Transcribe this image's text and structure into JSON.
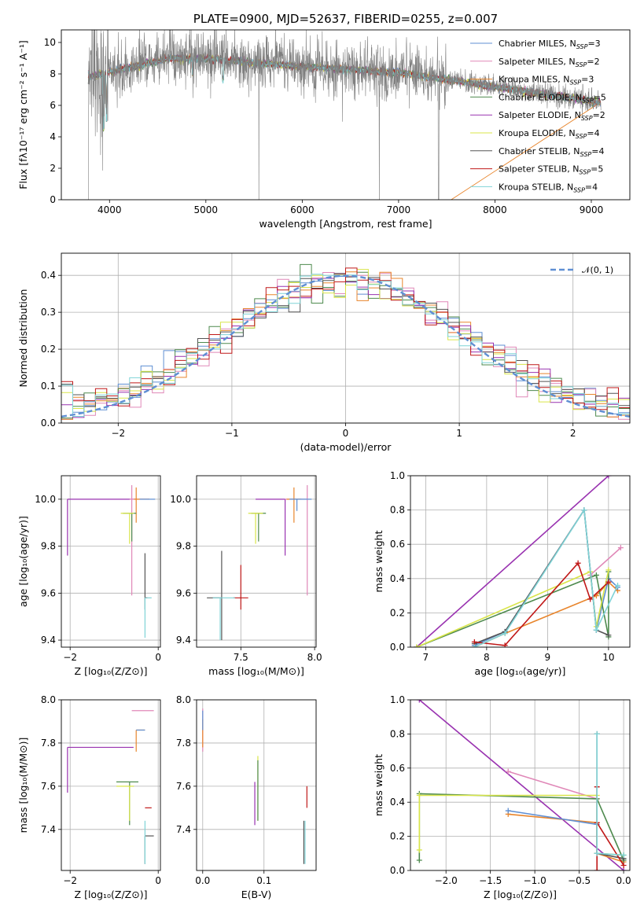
{
  "chart_data": [
    {
      "type": "line",
      "title": "PLATE=0900, MJD=52637, FIBERID=0255, z=0.007",
      "xlabel": "wavelength [Angstrom, rest frame]",
      "ylabel": "Flux [fλ10⁻¹⁷ erg cm⁻² s⁻¹ A⁻¹]",
      "xlim": [
        3500,
        9400
      ],
      "ylim": [
        0,
        10.8
      ],
      "xticks": [
        4000,
        5000,
        6000,
        7000,
        8000,
        9000
      ],
      "yticks": [
        0,
        2,
        4,
        6,
        8,
        10
      ],
      "grid": false,
      "legend_position": "top-right",
      "data_series": {
        "name": "",
        "color": "#7f7f7f",
        "x_range": [
          3780,
          9100
        ]
      },
      "series": [
        {
          "name": "Chabrier MILES, N_SSP=3",
          "label_main": "Chabrier MILES, N",
          "label_sub": "SSP",
          "label_tail": "=3",
          "color": "#5f8fd3"
        },
        {
          "name": "Salpeter MILES, N_SSP=2",
          "label_main": "Salpeter MILES, N",
          "label_sub": "SSP",
          "label_tail": "=2",
          "color": "#e088b8"
        },
        {
          "name": "Kroupa MILES, N_SSP=3",
          "label_main": "Kroupa MILES, N",
          "label_sub": "SSP",
          "label_tail": "=3",
          "color": "#e8852c"
        },
        {
          "name": "Chabrier ELODIE, N_SSP=5",
          "label_main": "Chabrier ELODIE, N",
          "label_sub": "SSP",
          "label_tail": "=5",
          "color": "#4e8a4e"
        },
        {
          "name": "Salpeter ELODIE, N_SSP=2",
          "label_main": "Salpeter ELODIE, N",
          "label_sub": "SSP",
          "label_tail": "=2",
          "color": "#9932b0"
        },
        {
          "name": "Kroupa ELODIE, N_SSP=4",
          "label_main": "Kroupa ELODIE, N",
          "label_sub": "SSP",
          "label_tail": "=4",
          "color": "#d9e54a"
        },
        {
          "name": "Chabrier STELIB, N_SSP=4",
          "label_main": "Chabrier STELIB, N",
          "label_sub": "SSP",
          "label_tail": "=4",
          "color": "#555555"
        },
        {
          "name": "Salpeter STELIB, N_SSP=5",
          "label_main": "Salpeter STELIB, N",
          "label_sub": "SSP",
          "label_tail": "=5",
          "color": "#c01818"
        },
        {
          "name": "Kroupa STELIB, N_SSP=4",
          "label_main": "Kroupa STELIB, N",
          "label_sub": "SSP",
          "label_tail": "=4",
          "color": "#7fd3d6"
        }
      ]
    },
    {
      "type": "histogram",
      "xlabel": "(data-model)/error",
      "ylabel": "Normed distribution",
      "xlim": [
        -2.5,
        2.5
      ],
      "ylim": [
        0,
        0.46
      ],
      "xticks": [
        -2,
        -1,
        0,
        1,
        2
      ],
      "xtick_labels": [
        "−2",
        "−1",
        "0",
        "1",
        "2"
      ],
      "yticks": [
        0.0,
        0.1,
        0.2,
        0.3,
        0.4
      ],
      "ytick_labels": [
        "0.0",
        "0.1",
        "0.2",
        "0.3",
        "0.4"
      ],
      "grid": true,
      "legend_position": "top-right",
      "reference_curve": {
        "name": "𝒩(0, 1)",
        "color": "#5f8fd3",
        "style": "dashed"
      },
      "bin_width": 0.1,
      "bin_start": -2.5
    },
    {
      "type": "scatter",
      "xlabel": "Z [log₁₀(Z/Z⊙)]",
      "ylabel": "age  [log₁₀(age/yr)]",
      "xlim": [
        -2.2,
        0.05
      ],
      "ylim": [
        9.37,
        10.1
      ],
      "xticks": [
        -2,
        0
      ],
      "xtick_labels": [
        "−2",
        "0"
      ],
      "yticks": [
        9.4,
        9.6,
        9.8,
        10.0
      ],
      "ytick_labels": [
        "9.4",
        "9.6",
        "9.8",
        "10.0"
      ],
      "grid": true,
      "points": [
        {
          "x": -2.06,
          "y": 10.0,
          "xerr": [
            0,
            0.0
          ],
          "yerr": [
            0.24,
            0.0
          ],
          "hxerr": 1.55,
          "color": "#9932b0"
        },
        {
          "x": -0.6,
          "y": 10.0,
          "xerr": [
            0.05,
            0.4
          ],
          "yerr": [
            0.41,
            0.06
          ],
          "color": "#e088b8"
        },
        {
          "x": -0.5,
          "y": 10.0,
          "xerr": [
            0.05,
            0.3
          ],
          "yerr": [
            0.1,
            0.05
          ],
          "color": "#e8852c"
        },
        {
          "x": -0.6,
          "y": 9.94,
          "xerr": [
            0.2,
            0.1
          ],
          "yerr": [
            0.12,
            0.0
          ],
          "color": "#4e8a4e"
        },
        {
          "x": -0.65,
          "y": 9.94,
          "xerr": [
            0.2,
            0.1
          ],
          "yerr": [
            0.13,
            0.0
          ],
          "color": "#d9e54a"
        },
        {
          "x": -0.37,
          "y": 10.0,
          "xerr": [
            0.05,
            0.3
          ],
          "yerr": [
            0.0,
            0.0
          ],
          "color": "#5f8fd3"
        },
        {
          "x": -0.3,
          "y": 9.58,
          "xerr": [
            0.0,
            0.05
          ],
          "yerr": [
            0.05,
            0.19
          ],
          "color": "#555555"
        },
        {
          "x": -0.3,
          "y": 9.58,
          "xerr": [
            0.0,
            0.05
          ],
          "yerr": [
            0.0,
            0.0
          ],
          "color": "#c01818"
        },
        {
          "x": -0.3,
          "y": 9.58,
          "xerr": [
            0.0,
            0.15
          ],
          "yerr": [
            0.17,
            0.0
          ],
          "color": "#7fd3d6"
        }
      ]
    },
    {
      "type": "scatter",
      "xlabel": "mass [log₁₀(M/M⊙)]",
      "xlim": [
        7.2,
        8.01
      ],
      "ylim": [
        9.37,
        10.1
      ],
      "xticks": [
        7.5,
        8.0
      ],
      "xtick_labels": [
        "7.5",
        "8.0"
      ],
      "yticks": [
        9.4,
        9.6,
        9.8,
        10.0
      ],
      "ytick_labels": [
        "9.4",
        "9.6",
        "9.8",
        "10.0"
      ],
      "grid": true,
      "points": [
        {
          "x": 7.8,
          "y": 10.0,
          "xerr": [
            0.2,
            0.0
          ],
          "yerr": [
            0.24,
            0.0
          ],
          "color": "#9932b0"
        },
        {
          "x": 7.95,
          "y": 10.0,
          "xerr": [
            0.15,
            0.0
          ],
          "yerr": [
            0.41,
            0.06
          ],
          "color": "#e088b8"
        },
        {
          "x": 7.86,
          "y": 10.0,
          "xerr": [
            0.05,
            0.05
          ],
          "yerr": [
            0.1,
            0.05
          ],
          "color": "#e8852c"
        },
        {
          "x": 7.62,
          "y": 9.94,
          "xerr": [
            0.05,
            0.05
          ],
          "yerr": [
            0.12,
            0.0
          ],
          "color": "#4e8a4e"
        },
        {
          "x": 7.6,
          "y": 9.94,
          "xerr": [
            0.05,
            0.05
          ],
          "yerr": [
            0.13,
            0.0
          ],
          "color": "#d9e54a"
        },
        {
          "x": 7.88,
          "y": 10.0,
          "xerr": [
            0.05,
            0.1
          ],
          "yerr": [
            0.05,
            0.0
          ],
          "color": "#5f8fd3"
        },
        {
          "x": 7.37,
          "y": 9.58,
          "xerr": [
            0.1,
            0.0
          ],
          "yerr": [
            0.18,
            0.2
          ],
          "color": "#555555"
        },
        {
          "x": 7.5,
          "y": 9.58,
          "xerr": [
            0.05,
            0.05
          ],
          "yerr": [
            0.05,
            0.14
          ],
          "color": "#c01818"
        },
        {
          "x": 7.36,
          "y": 9.58,
          "xerr": [
            0.05,
            0.1
          ],
          "yerr": [
            0.18,
            0.0
          ],
          "color": "#7fd3d6"
        }
      ]
    },
    {
      "type": "line",
      "xlabel": "age  [log₁₀(age/yr)]",
      "ylabel": "mass weight",
      "xlim": [
        6.75,
        10.35
      ],
      "ylim": [
        0,
        1.0
      ],
      "xticks": [
        7,
        8,
        9,
        10
      ],
      "xtick_labels": [
        "7",
        "8",
        "9",
        "10"
      ],
      "yticks": [
        0.0,
        0.2,
        0.4,
        0.6,
        0.8,
        1.0
      ],
      "ytick_labels": [
        "0.0",
        "0.2",
        "0.4",
        "0.6",
        "0.8",
        "1.0"
      ],
      "grid": true,
      "series": [
        {
          "color": "#9932b0",
          "x": [
            6.85,
            10.0
          ],
          "y": [
            0.0,
            1.0
          ]
        },
        {
          "color": "#e088b8",
          "x": [
            9.7,
            10.2
          ],
          "y": [
            0.42,
            0.58
          ]
        },
        {
          "color": "#e8852c",
          "x": [
            7.8,
            8.3,
            9.8,
            10.0,
            10.15
          ],
          "y": [
            0.0,
            0.08,
            0.3,
            0.38,
            0.33
          ]
        },
        {
          "color": "#5f8fd3",
          "x": [
            7.8,
            8.3,
            9.6,
            9.8,
            10.0,
            10.15
          ],
          "y": [
            0.01,
            0.09,
            0.8,
            0.1,
            0.4,
            0.35
          ]
        },
        {
          "color": "#4e8a4e",
          "x": [
            6.85,
            9.8,
            10.0,
            10.0
          ],
          "y": [
            0.0,
            0.42,
            0.06,
            0.44
          ]
        },
        {
          "color": "#d9e54a",
          "x": [
            6.85,
            9.7,
            9.8,
            10.0
          ],
          "y": [
            0.0,
            0.44,
            0.12,
            0.45
          ]
        },
        {
          "color": "#555555",
          "x": [
            7.8,
            8.3,
            9.6,
            9.8,
            10.0
          ],
          "y": [
            0.02,
            0.09,
            0.8,
            0.1,
            0.07
          ]
        },
        {
          "color": "#c01818",
          "x": [
            7.8,
            8.3,
            9.5,
            9.7,
            10.0
          ],
          "y": [
            0.03,
            0.01,
            0.49,
            0.28,
            0.38
          ]
        },
        {
          "color": "#7fd3d6",
          "x": [
            7.8,
            8.3,
            9.6,
            9.8,
            10.15
          ],
          "y": [
            0.0,
            0.08,
            0.8,
            0.1,
            0.36
          ]
        }
      ]
    },
    {
      "type": "scatter",
      "xlabel": "Z [log₁₀(Z/Z⊙)]",
      "ylabel": "mass [log₁₀(M/M⊙)]",
      "xlim": [
        -2.2,
        0.05
      ],
      "ylim": [
        7.21,
        8.0
      ],
      "xticks": [
        -2,
        0
      ],
      "xtick_labels": [
        "−2",
        "0"
      ],
      "yticks": [
        7.4,
        7.6,
        7.8,
        8.0
      ],
      "ytick_labels": [
        "7.4",
        "7.6",
        "7.8",
        "8.0"
      ],
      "grid": true,
      "points": [
        {
          "x": -2.06,
          "y": 7.78,
          "xerr": [
            0,
            1.5
          ],
          "yerr": [
            0.21,
            0.0
          ],
          "color": "#9932b0"
        },
        {
          "x": -0.6,
          "y": 7.95,
          "xerr": [
            0.0,
            0.5
          ],
          "yerr": [
            0.0,
            0.0
          ],
          "color": "#e088b8"
        },
        {
          "x": -0.5,
          "y": 7.86,
          "xerr": [
            0.0,
            0.2
          ],
          "yerr": [
            0.1,
            0.0
          ],
          "color": "#e8852c"
        },
        {
          "x": -0.65,
          "y": 7.62,
          "xerr": [
            0.3,
            0.2
          ],
          "yerr": [
            0.2,
            0.0
          ],
          "color": "#4e8a4e"
        },
        {
          "x": -0.65,
          "y": 7.6,
          "xerr": [
            0.3,
            0.1
          ],
          "yerr": [
            0.16,
            0.0
          ],
          "color": "#d9e54a"
        },
        {
          "x": -0.5,
          "y": 7.86,
          "xerr": [
            0.0,
            0.2
          ],
          "yerr": [
            0.0,
            0.0
          ],
          "color": "#5f8fd3"
        },
        {
          "x": -0.3,
          "y": 7.37,
          "xerr": [
            0.0,
            0.2
          ],
          "yerr": [
            0.13,
            0.0
          ],
          "color": "#555555"
        },
        {
          "x": -0.3,
          "y": 7.5,
          "xerr": [
            0.0,
            0.15
          ],
          "yerr": [
            0.0,
            0.0
          ],
          "color": "#c01818"
        },
        {
          "x": -0.3,
          "y": 7.36,
          "xerr": [
            0.0,
            0.0
          ],
          "yerr": [
            0.12,
            0.08
          ],
          "color": "#7fd3d6"
        }
      ]
    },
    {
      "type": "scatter",
      "xlabel": "E(B-V)",
      "xlim": [
        -0.01,
        0.185
      ],
      "ylim": [
        7.21,
        8.0
      ],
      "xticks": [
        0.0,
        0.1
      ],
      "xtick_labels": [
        "0.0",
        "0.1"
      ],
      "yticks": [
        7.4,
        7.6,
        7.8,
        8.0
      ],
      "ytick_labels": [
        "7.4",
        "7.6",
        "7.8",
        "8.0"
      ],
      "grid": true,
      "points": [
        {
          "x": 0.0,
          "y": 7.86,
          "yerr": [
            0.1,
            0.1
          ],
          "color": "#e088b8"
        },
        {
          "x": 0.0,
          "y": 7.86,
          "yerr": [
            0.08,
            0.05
          ],
          "color": "#e8852c"
        },
        {
          "x": 0.0,
          "y": 7.86,
          "yerr": [
            0.0,
            0.09
          ],
          "color": "#5f8fd3"
        },
        {
          "x": 0.085,
          "y": 7.62,
          "yerr": [
            0.2,
            0.0
          ],
          "color": "#9932b0"
        },
        {
          "x": 0.09,
          "y": 7.6,
          "yerr": [
            0.16,
            0.14
          ],
          "color": "#d9e54a"
        },
        {
          "x": 0.09,
          "y": 7.62,
          "yerr": [
            0.18,
            0.1
          ],
          "color": "#4e8a4e"
        },
        {
          "x": 0.17,
          "y": 7.5,
          "yerr": [
            0.0,
            0.1
          ],
          "color": "#c01818"
        },
        {
          "x": 0.165,
          "y": 7.37,
          "yerr": [
            0.13,
            0.07
          ],
          "color": "#555555"
        },
        {
          "x": 0.167,
          "y": 7.36,
          "yerr": [
            0.12,
            0.08
          ],
          "color": "#7fd3d6"
        }
      ]
    },
    {
      "type": "line",
      "xlabel": "Z [log₁₀(Z/Z⊙)]",
      "ylabel": "mass weight",
      "xlim": [
        -2.4,
        0.07
      ],
      "ylim": [
        0,
        1.0
      ],
      "xticks": [
        -2.0,
        -1.5,
        -1.0,
        -0.5,
        0.0
      ],
      "xtick_labels": [
        "−2.0",
        "−1.5",
        "−1.0",
        "−0.5",
        "0.0"
      ],
      "yticks": [
        0.0,
        0.2,
        0.4,
        0.6,
        0.8,
        1.0
      ],
      "ytick_labels": [
        "0.0",
        "0.2",
        "0.4",
        "0.6",
        "0.8",
        "1.0"
      ],
      "grid": true,
      "series": [
        {
          "color": "#9932b0",
          "x": [
            -2.3,
            0.0
          ],
          "y": [
            1.0,
            0.0
          ]
        },
        {
          "color": "#e088b8",
          "x": [
            -1.3,
            -0.3
          ],
          "y": [
            0.58,
            0.42
          ]
        },
        {
          "color": "#e8852c",
          "x": [
            -1.3,
            -0.3,
            -0.3,
            0.0
          ],
          "y": [
            0.33,
            0.28,
            0.1,
            0.05
          ]
        },
        {
          "color": "#5f8fd3",
          "x": [
            -1.3,
            -0.3,
            -0.3,
            0.0
          ],
          "y": [
            0.35,
            0.27,
            0.1,
            0.09
          ]
        },
        {
          "color": "#4e8a4e",
          "x": [
            -2.3,
            -2.3,
            -0.3,
            0.0
          ],
          "y": [
            0.06,
            0.45,
            0.42,
            0.06
          ]
        },
        {
          "color": "#d9e54a",
          "x": [
            -2.3,
            -2.3,
            -0.3,
            -0.3,
            0.0
          ],
          "y": [
            0.12,
            0.44,
            0.44,
            0.1,
            0.09
          ]
        },
        {
          "color": "#555555",
          "x": [
            -0.3,
            -0.3,
            0.0
          ],
          "y": [
            0.8,
            0.1,
            0.07
          ]
        },
        {
          "color": "#c01818",
          "x": [
            -0.3,
            -0.3,
            -0.3,
            0.0
          ],
          "y": [
            0.49,
            0.0,
            0.28,
            0.03
          ]
        },
        {
          "color": "#7fd3d6",
          "x": [
            -0.3,
            -0.3,
            0.0
          ],
          "y": [
            0.8,
            0.1,
            0.09
          ]
        }
      ]
    }
  ]
}
